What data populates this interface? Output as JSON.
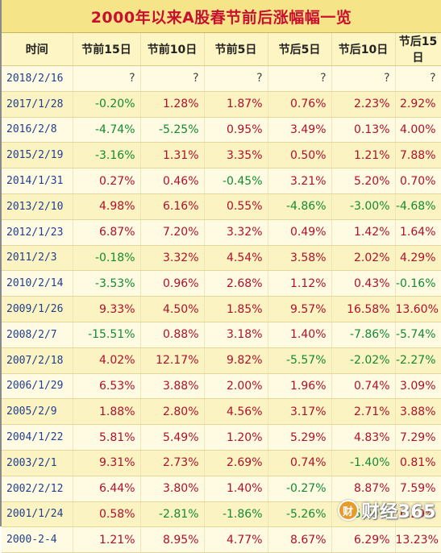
{
  "title": "2000年以来A股春节前后涨幅幅一览",
  "columns": [
    "时间",
    "节前15日",
    "节前10日",
    "节前5日",
    "节后5日",
    "节后10日",
    "节后15日"
  ],
  "rows": [
    [
      "2018/2/16",
      "?",
      "?",
      "?",
      "?",
      "?",
      "?"
    ],
    [
      "2017/1/28",
      "-0.20%",
      "1.28%",
      "1.87%",
      "0.76%",
      "2.23%",
      "2.92%"
    ],
    [
      "2016/2/8",
      "-4.74%",
      "-5.25%",
      "0.95%",
      "3.49%",
      "0.13%",
      "4.00%"
    ],
    [
      "2015/2/19",
      "-3.16%",
      "1.31%",
      "3.35%",
      "0.50%",
      "1.21%",
      "7.88%"
    ],
    [
      "2014/1/31",
      "0.27%",
      "0.46%",
      "-0.45%",
      "3.21%",
      "5.20%",
      "0.70%"
    ],
    [
      "2013/2/10",
      "4.98%",
      "6.16%",
      "0.55%",
      "-4.86%",
      "-3.00%",
      "-4.68%"
    ],
    [
      "2012/1/23",
      "6.87%",
      "7.20%",
      "3.32%",
      "0.49%",
      "1.42%",
      "1.64%"
    ],
    [
      "2011/2/3",
      "-0.18%",
      "3.32%",
      "4.54%",
      "3.58%",
      "2.02%",
      "4.29%"
    ],
    [
      "2010/2/14",
      "-3.53%",
      "0.96%",
      "2.68%",
      "1.12%",
      "0.43%",
      "-0.16%"
    ],
    [
      "2009/1/26",
      "9.33%",
      "4.50%",
      "1.85%",
      "9.57%",
      "16.58%",
      "13.60%"
    ],
    [
      "2008/2/7",
      "-15.51%",
      "0.88%",
      "3.18%",
      "1.40%",
      "-7.86%",
      "-5.74%"
    ],
    [
      "2007/2/18",
      "4.02%",
      "12.17%",
      "9.82%",
      "-5.57%",
      "-2.02%",
      "-2.27%"
    ],
    [
      "2006/1/29",
      "6.53%",
      "3.88%",
      "2.00%",
      "1.96%",
      "0.74%",
      "3.09%"
    ],
    [
      "2005/2/9",
      "1.88%",
      "2.80%",
      "4.56%",
      "3.17%",
      "2.71%",
      "3.88%"
    ],
    [
      "2004/1/22",
      "5.81%",
      "5.49%",
      "1.20%",
      "5.29%",
      "4.83%",
      "7.29%"
    ],
    [
      "2003/2/1",
      "9.31%",
      "2.73%",
      "2.69%",
      "0.74%",
      "-1.40%",
      "0.81%"
    ],
    [
      "2002/2/12",
      "6.44%",
      "3.80%",
      "1.40%",
      "-0.27%",
      "8.87%",
      "7.59%"
    ],
    [
      "2001/1/24",
      "0.58%",
      "-2.81%",
      "-1.86%",
      "-5.26%",
      "-5.99%",
      "6.29%"
    ],
    [
      "2000-2-4",
      "1.21%",
      "8.95%",
      "4.77%",
      "8.67%",
      "6.29%",
      "13.23%"
    ]
  ],
  "watermark": {
    "logo": "财",
    "text": "财经365"
  },
  "colors": {
    "positive": "#b0102a",
    "negative": "#138a34",
    "title": "#c8102e",
    "header_bg": "#f5e488"
  }
}
